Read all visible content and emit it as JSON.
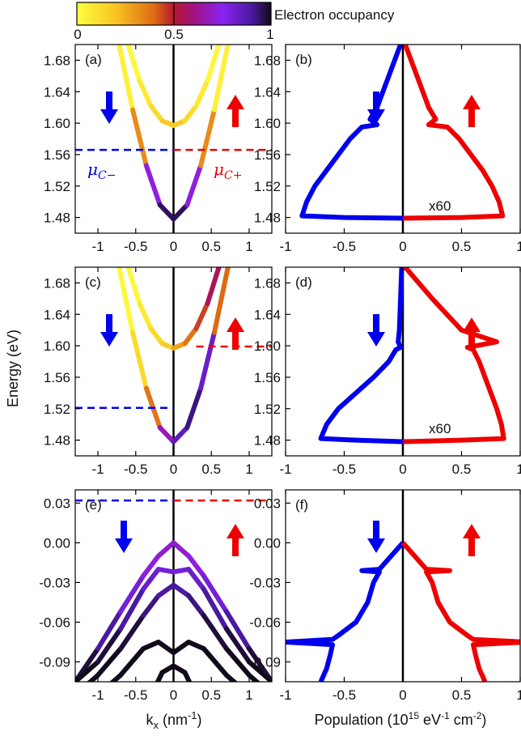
{
  "colorbar": {
    "label": "Electron occupancy",
    "ticks": [
      "0",
      "0.5",
      "1"
    ]
  },
  "axis_labels": {
    "energy": "Energy (eV)",
    "kx_main": "k",
    "kx_sub": "x",
    "kx_unit_pre": " (nm",
    "kx_unit_sup": "-1",
    "kx_unit_post": ")",
    "pop_pre": "Population (10",
    "pop_sup1": "15",
    "pop_mid1": " eV",
    "pop_sup2": "-1",
    "pop_mid2": " cm",
    "pop_sup3": "-2",
    "pop_post": ")"
  },
  "panels": {
    "a": {
      "label": "(a)",
      "mu_minus": "μ",
      "mu_minus_sub": "C−",
      "mu_plus": "μ",
      "mu_plus_sub": "C+"
    },
    "b": {
      "label": "(b)",
      "scale_note": "x60"
    },
    "c": {
      "label": "(c)"
    },
    "d": {
      "label": "(d)",
      "scale_note": "x60"
    },
    "e": {
      "label": "(e)"
    },
    "f": {
      "label": "(f)"
    }
  },
  "colors": {
    "spin_down": "#0000ee",
    "spin_up": "#ee0000",
    "axis": "#000000"
  },
  "chart_data": [
    {
      "panel": "a",
      "type": "line",
      "xlabel": "",
      "ylabel": "",
      "xlim": [
        -1.3,
        1.3
      ],
      "ylim": [
        1.46,
        1.7
      ],
      "xticks": [
        "-1",
        "-0.5",
        "0",
        "0.5",
        "1"
      ],
      "yticks": [
        "1.48",
        "1.52",
        "1.56",
        "1.60",
        "1.64",
        "1.68"
      ],
      "series": [
        {
          "kind": "band",
          "k": [
            -0.6,
            -0.45,
            -0.3,
            -0.15,
            0,
            0.15,
            0.3,
            0.45,
            0.6
          ],
          "E": [
            1.7,
            1.654,
            1.622,
            1.603,
            1.597,
            1.603,
            1.622,
            1.654,
            1.7
          ],
          "occupancy": [
            0,
            0.05,
            0.1,
            0.15,
            0.2,
            0.15,
            0.1,
            0.05,
            0
          ]
        },
        {
          "kind": "band",
          "k": [
            -0.72,
            -0.54,
            -0.36,
            -0.18,
            0,
            0.18,
            0.36,
            0.54,
            0.72
          ],
          "E": [
            1.7,
            1.617,
            1.546,
            1.496,
            1.478,
            1.496,
            1.546,
            1.617,
            1.7
          ],
          "occupancy": [
            0,
            0.1,
            0.55,
            0.9,
            1,
            0.9,
            0.55,
            0.1,
            0
          ]
        }
      ],
      "hlines": [
        {
          "spin": "down",
          "E": 1.566,
          "k_range": [
            -1.3,
            0
          ]
        },
        {
          "spin": "up",
          "E": 1.566,
          "k_range": [
            0,
            1.3
          ]
        }
      ]
    },
    {
      "panel": "b",
      "type": "line",
      "xlim": [
        -1.0,
        1.0
      ],
      "ylim": [
        1.46,
        1.7
      ],
      "xticks": [
        "-1",
        "-0.5",
        "0",
        "0.5",
        "1"
      ],
      "yticks": [
        "1.48",
        "1.52",
        "1.56",
        "1.60",
        "1.64",
        "1.68"
      ],
      "series": [
        {
          "spin": "down",
          "E": [
            1.7,
            1.66,
            1.62,
            1.605,
            1.598,
            1.595,
            1.58,
            1.56,
            1.54,
            1.52,
            1.5,
            1.482,
            1.48,
            1.479
          ],
          "pop": [
            -0.02,
            -0.12,
            -0.22,
            -0.28,
            -0.22,
            -0.35,
            -0.45,
            -0.55,
            -0.65,
            -0.75,
            -0.82,
            -0.86,
            -0.5,
            0
          ]
        },
        {
          "spin": "up",
          "E": [
            1.7,
            1.66,
            1.62,
            1.605,
            1.598,
            1.595,
            1.58,
            1.56,
            1.54,
            1.52,
            1.5,
            1.482,
            1.48,
            1.479
          ],
          "pop": [
            0.02,
            0.12,
            0.22,
            0.28,
            0.22,
            0.38,
            0.48,
            0.58,
            0.68,
            0.76,
            0.82,
            0.85,
            0.5,
            0
          ]
        }
      ]
    },
    {
      "panel": "c",
      "type": "line",
      "xlim": [
        -1.3,
        1.3
      ],
      "ylim": [
        1.46,
        1.7
      ],
      "xticks": [
        "-1",
        "-0.5",
        "0",
        "0.5",
        "1"
      ],
      "yticks": [
        "1.48",
        "1.52",
        "1.56",
        "1.60",
        "1.64",
        "1.68"
      ],
      "series": [
        {
          "kind": "band",
          "k": [
            -0.6,
            -0.45,
            -0.3,
            -0.15,
            0,
            0.15,
            0.3,
            0.45,
            0.6
          ],
          "E": [
            1.7,
            1.654,
            1.622,
            1.603,
            1.597,
            1.603,
            1.622,
            1.654,
            1.7
          ],
          "occupancy": [
            0,
            0.05,
            0.1,
            0.15,
            0.2,
            0.35,
            0.4,
            0.5,
            0.6
          ]
        },
        {
          "kind": "band",
          "k": [
            -0.72,
            -0.54,
            -0.36,
            -0.18,
            0,
            0.18,
            0.36,
            0.54,
            0.72
          ],
          "E": [
            1.7,
            1.617,
            1.546,
            1.496,
            1.478,
            1.496,
            1.546,
            1.617,
            1.7
          ],
          "occupancy": [
            0,
            0.05,
            0.2,
            0.55,
            0.8,
            0.9,
            0.95,
            0.7,
            0.1
          ]
        }
      ],
      "hlines": [
        {
          "spin": "down",
          "E": 1.521,
          "k_range": [
            -1.3,
            0
          ]
        },
        {
          "spin": "up",
          "E": 1.599,
          "k_range": [
            0.3,
            1.3
          ]
        }
      ]
    },
    {
      "panel": "d",
      "type": "line",
      "xlim": [
        -1.0,
        1.0
      ],
      "ylim": [
        1.46,
        1.7
      ],
      "xticks": [
        "-1",
        "-0.5",
        "0",
        "0.5",
        "1"
      ],
      "yticks": [
        "1.48",
        "1.52",
        "1.56",
        "1.60",
        "1.64",
        "1.68"
      ],
      "series": [
        {
          "spin": "down",
          "E": [
            1.7,
            1.66,
            1.62,
            1.605,
            1.598,
            1.595,
            1.58,
            1.56,
            1.54,
            1.52,
            1.5,
            1.482,
            1.48,
            1.478
          ],
          "pop": [
            -0.01,
            -0.02,
            -0.03,
            -0.04,
            -0.02,
            -0.06,
            -0.12,
            -0.25,
            -0.4,
            -0.55,
            -0.65,
            -0.7,
            -0.4,
            0
          ]
        },
        {
          "spin": "up",
          "E": [
            1.7,
            1.66,
            1.62,
            1.605,
            1.598,
            1.595,
            1.58,
            1.56,
            1.54,
            1.52,
            1.5,
            1.482,
            1.48,
            1.478
          ],
          "pop": [
            0.02,
            0.25,
            0.5,
            0.8,
            0.55,
            0.6,
            0.65,
            0.7,
            0.75,
            0.8,
            0.84,
            0.86,
            0.5,
            0
          ]
        }
      ]
    },
    {
      "panel": "e",
      "type": "line",
      "xlim": [
        -1.3,
        1.3
      ],
      "ylim": [
        -0.105,
        0.04
      ],
      "xticks": [
        "-1",
        "-0.5",
        "0",
        "0.5",
        "1"
      ],
      "yticks": [
        "0.03",
        "0.00",
        "-0.03",
        "-0.06",
        "-0.09"
      ],
      "series": [
        {
          "kind": "band",
          "k": [
            -1.3,
            -1.0,
            -0.7,
            -0.4,
            -0.2,
            0,
            0.2,
            0.4,
            0.7,
            1.0,
            1.3
          ],
          "E": [
            -0.105,
            -0.08,
            -0.052,
            -0.025,
            -0.01,
            0.0,
            -0.01,
            -0.025,
            -0.052,
            -0.08,
            -0.105
          ],
          "occupancy": [
            1,
            0.95,
            0.85,
            0.75,
            0.7,
            0.7,
            0.7,
            0.75,
            0.85,
            0.95,
            1
          ]
        },
        {
          "kind": "band",
          "k": [
            -1.3,
            -1.0,
            -0.7,
            -0.4,
            -0.2,
            0,
            0.2,
            0.4,
            0.7,
            1.0,
            1.3
          ],
          "E": [
            -0.105,
            -0.09,
            -0.065,
            -0.035,
            -0.02,
            -0.022,
            -0.02,
            -0.035,
            -0.065,
            -0.09,
            -0.105
          ],
          "occupancy": [
            1,
            1,
            0.95,
            0.85,
            0.8,
            0.8,
            0.8,
            0.85,
            0.95,
            1,
            1
          ]
        },
        {
          "kind": "band",
          "k": [
            -1.3,
            -1.0,
            -0.7,
            -0.4,
            -0.2,
            0,
            0.2,
            0.4,
            0.7,
            1.0,
            1.3
          ],
          "E": [
            -0.115,
            -0.1,
            -0.08,
            -0.055,
            -0.04,
            -0.032,
            -0.04,
            -0.055,
            -0.08,
            -0.1,
            -0.115
          ],
          "occupancy": [
            1,
            1,
            1,
            0.95,
            0.9,
            0.9,
            0.9,
            0.95,
            1,
            1,
            1
          ]
        },
        {
          "kind": "band",
          "k": [
            -1.0,
            -0.7,
            -0.4,
            -0.2,
            0,
            0.2,
            0.4,
            0.7,
            1.0
          ],
          "E": [
            -0.115,
            -0.1,
            -0.08,
            -0.075,
            -0.083,
            -0.075,
            -0.08,
            -0.1,
            -0.115
          ],
          "occupancy": [
            1,
            1,
            1,
            1,
            1,
            1,
            1,
            1,
            1
          ]
        },
        {
          "kind": "band",
          "k": [
            -0.25,
            -0.15,
            0,
            0.15,
            0.25
          ],
          "E": [
            -0.11,
            -0.098,
            -0.093,
            -0.098,
            -0.11
          ],
          "occupancy": [
            1,
            1,
            1,
            1,
            1
          ]
        }
      ],
      "hlines": [
        {
          "spin": "down",
          "E": 0.032,
          "k_range": [
            -1.3,
            0
          ]
        },
        {
          "spin": "up",
          "E": 0.032,
          "k_range": [
            0,
            1.3
          ]
        }
      ]
    },
    {
      "panel": "f",
      "type": "line",
      "xlim": [
        -1.0,
        1.0
      ],
      "ylim": [
        -0.105,
        0.04
      ],
      "xticks": [
        "-1",
        "-0.5",
        "0",
        "0.5",
        "1"
      ],
      "yticks": [
        "0.03",
        "0.00",
        "-0.03",
        "-0.06",
        "-0.09"
      ],
      "series": [
        {
          "spin": "down",
          "E": [
            0.0,
            -0.005,
            -0.015,
            -0.02,
            -0.021,
            -0.022,
            -0.03,
            -0.045,
            -0.06,
            -0.07,
            -0.073,
            -0.075,
            -0.077,
            -0.085,
            -0.095,
            -0.105
          ],
          "pop": [
            0,
            -0.05,
            -0.15,
            -0.2,
            -0.35,
            -0.2,
            -0.25,
            -0.3,
            -0.4,
            -0.55,
            -0.6,
            -1.0,
            -0.6,
            -0.62,
            -0.65,
            -0.7
          ]
        },
        {
          "spin": "up",
          "E": [
            0.0,
            -0.005,
            -0.015,
            -0.02,
            -0.021,
            -0.022,
            -0.03,
            -0.045,
            -0.06,
            -0.07,
            -0.073,
            -0.075,
            -0.077,
            -0.085,
            -0.095,
            -0.105
          ],
          "pop": [
            0,
            0.05,
            0.15,
            0.2,
            0.4,
            0.2,
            0.25,
            0.3,
            0.4,
            0.55,
            0.6,
            1.05,
            0.6,
            0.62,
            0.65,
            0.7
          ]
        }
      ]
    }
  ]
}
